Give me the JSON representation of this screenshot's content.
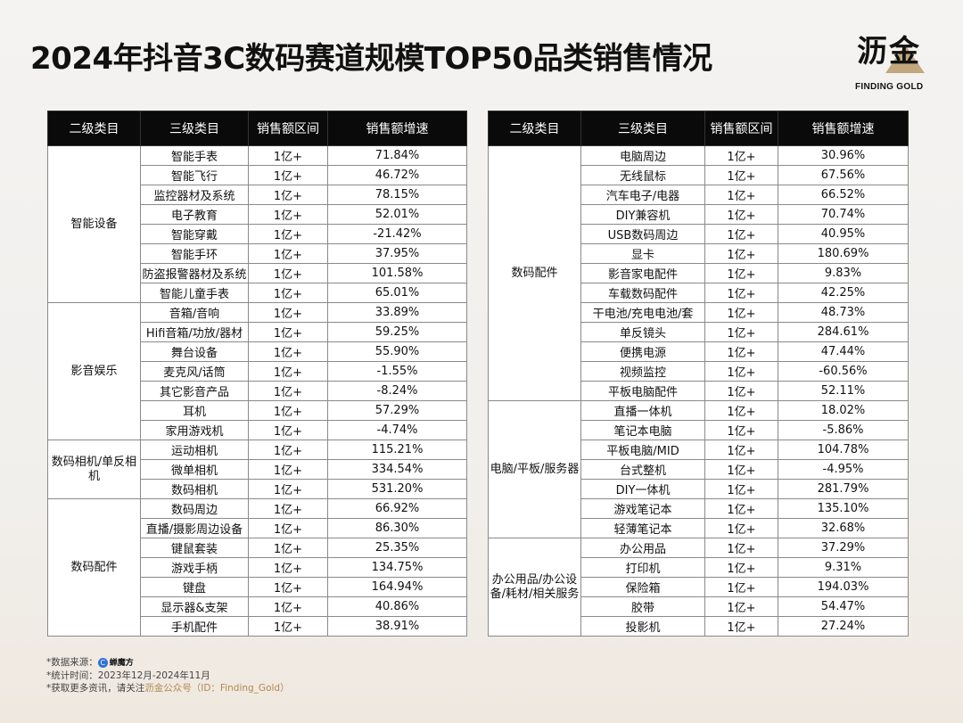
{
  "title": "2024年抖音3C数码赛道规模TOP50品类销售情况",
  "logo": {
    "cn": "沥金",
    "en": "FINDING GOLD"
  },
  "headers": [
    "二级类目",
    "三级类目",
    "销售额区间",
    "销售额增速"
  ],
  "left_table": [
    {
      "group": "智能设备",
      "rows": [
        [
          "智能手表",
          "1亿+",
          "71.84%"
        ],
        [
          "智能飞行",
          "1亿+",
          "46.72%"
        ],
        [
          "监控器材及系统",
          "1亿+",
          "78.15%"
        ],
        [
          "电子教育",
          "1亿+",
          "52.01%"
        ],
        [
          "智能穿戴",
          "1亿+",
          "-21.42%"
        ],
        [
          "智能手环",
          "1亿+",
          "37.95%"
        ],
        [
          "防盗报警器材及系统",
          "1亿+",
          "101.58%"
        ],
        [
          "智能儿童手表",
          "1亿+",
          "65.01%"
        ]
      ]
    },
    {
      "group": "影音娱乐",
      "rows": [
        [
          "音箱/音响",
          "1亿+",
          "33.89%"
        ],
        [
          "Hifi音箱/功放/器材",
          "1亿+",
          "59.25%"
        ],
        [
          "舞台设备",
          "1亿+",
          "55.90%"
        ],
        [
          "麦克风/话筒",
          "1亿+",
          "-1.55%"
        ],
        [
          "其它影音产品",
          "1亿+",
          "-8.24%"
        ],
        [
          "耳机",
          "1亿+",
          "57.29%"
        ],
        [
          "家用游戏机",
          "1亿+",
          "-4.74%"
        ]
      ]
    },
    {
      "group": "数码相机/单反相机",
      "rows": [
        [
          "运动相机",
          "1亿+",
          "115.21%"
        ],
        [
          "微单相机",
          "1亿+",
          "334.54%"
        ],
        [
          "数码相机",
          "1亿+",
          "531.20%"
        ]
      ]
    },
    {
      "group": "数码配件",
      "rows": [
        [
          "数码周边",
          "1亿+",
          "66.92%"
        ],
        [
          "直播/摄影周边设备",
          "1亿+",
          "86.30%"
        ],
        [
          "键鼠套装",
          "1亿+",
          "25.35%"
        ],
        [
          "游戏手柄",
          "1亿+",
          "134.75%"
        ],
        [
          "键盘",
          "1亿+",
          "164.94%"
        ],
        [
          "显示器&支架",
          "1亿+",
          "40.86%"
        ],
        [
          "手机配件",
          "1亿+",
          "38.91%"
        ]
      ]
    }
  ],
  "right_table": [
    {
      "group": "数码配件",
      "rows": [
        [
          "电脑周边",
          "1亿+",
          "30.96%"
        ],
        [
          "无线鼠标",
          "1亿+",
          "67.56%"
        ],
        [
          "汽车电子/电器",
          "1亿+",
          "66.52%"
        ],
        [
          "DIY兼容机",
          "1亿+",
          "70.74%"
        ],
        [
          "USB数码周边",
          "1亿+",
          "40.95%"
        ],
        [
          "显卡",
          "1亿+",
          "180.69%"
        ],
        [
          "影音家电配件",
          "1亿+",
          "9.83%"
        ],
        [
          "车载数码配件",
          "1亿+",
          "42.25%"
        ],
        [
          "干电池/充电电池/套",
          "1亿+",
          "48.73%"
        ],
        [
          "单反镜头",
          "1亿+",
          "284.61%"
        ],
        [
          "便携电源",
          "1亿+",
          "47.44%"
        ],
        [
          "视频监控",
          "1亿+",
          "-60.56%"
        ],
        [
          "平板电脑配件",
          "1亿+",
          "52.11%"
        ]
      ]
    },
    {
      "group": "电脑/平板/服务器",
      "rows": [
        [
          "直播一体机",
          "1亿+",
          "18.02%"
        ],
        [
          "笔记本电脑",
          "1亿+",
          "-5.86%"
        ],
        [
          "平板电脑/MID",
          "1亿+",
          "104.78%"
        ],
        [
          "台式整机",
          "1亿+",
          "-4.95%"
        ],
        [
          "DIY一体机",
          "1亿+",
          "281.79%"
        ],
        [
          "游戏笔记本",
          "1亿+",
          "135.10%"
        ],
        [
          "轻薄笔记本",
          "1亿+",
          "32.68%"
        ]
      ]
    },
    {
      "group": "办公用品/办公设备/耗材/相关服务",
      "rows": [
        [
          "办公用品",
          "1亿+",
          "37.29%"
        ],
        [
          "打印机",
          "1亿+",
          "9.31%"
        ],
        [
          "保险箱",
          "1亿+",
          "194.03%"
        ],
        [
          "胶带",
          "1亿+",
          "54.47%"
        ],
        [
          "投影机",
          "1亿+",
          "27.24%"
        ]
      ]
    }
  ],
  "footer": {
    "source_label": "*数据来源：",
    "source_name": "蝉魔方",
    "time": "*统计时间：2023年12月-2024年11月",
    "more_prefix": "*获取更多资讯，请关注",
    "more_highlight": "沥金公众号（ID：Finding_Gold）"
  }
}
